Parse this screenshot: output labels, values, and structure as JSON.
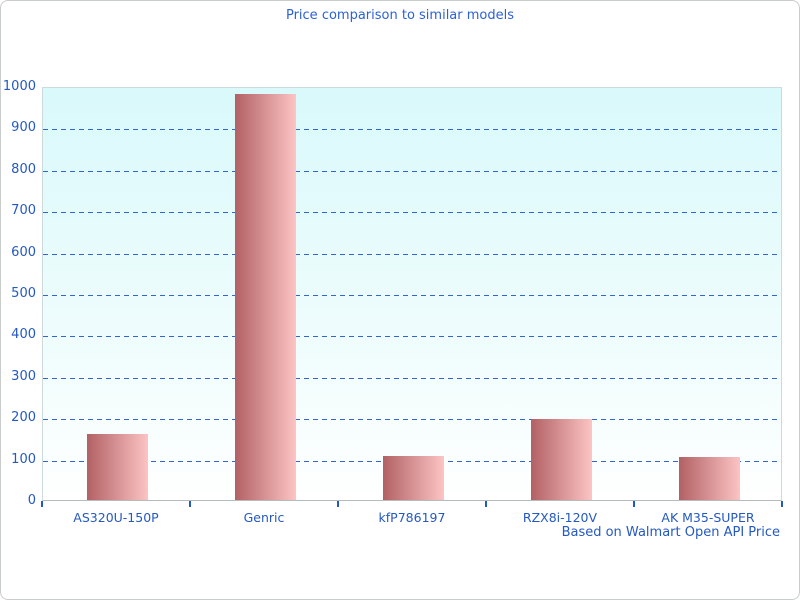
{
  "title": "Price comparison to similar models",
  "footer": "Based on Walmart Open API Price",
  "colors": {
    "title_text": "#2b62d6",
    "axis_text": "#2459c2",
    "tick": "#2459c2",
    "gridline": "#3366cc",
    "bar_gradient_start": "#b26164",
    "bar_gradient_end": "#fcc4c4",
    "plot_bg_top": "#d9f9fb",
    "plot_bg_bottom": "#fefffe",
    "plot_border": "#ccdadb",
    "axis_line": "#b4bcbd"
  },
  "chart_data": {
    "type": "bar",
    "title": "Price comparison to similar models",
    "categories": [
      "AS320U-150P",
      "Genric",
      "kfP786197",
      "RZX8i-120V",
      "AK M35-SUPER"
    ],
    "values": [
      160,
      980,
      106,
      195,
      104
    ],
    "xlabel": "",
    "ylabel": "",
    "ylim": [
      0,
      1000
    ],
    "yticks": [
      0,
      100,
      200,
      300,
      400,
      500,
      600,
      700,
      800,
      900,
      1000
    ],
    "grid": "horizontal-dashed",
    "legend": "none",
    "annotation": "Based on Walmart Open API Price"
  }
}
